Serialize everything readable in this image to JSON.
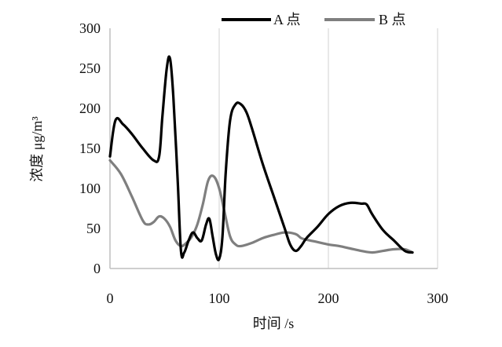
{
  "chart_data": {
    "type": "line",
    "xlabel": "时间 /s",
    "ylabel": "浓度 μg/m³",
    "xlim": [
      0,
      300
    ],
    "ylim": [
      0,
      300
    ],
    "xticks": [
      "0",
      "100",
      "200",
      "300"
    ],
    "yticks": [
      "0",
      "50",
      "100",
      "150",
      "200",
      "250",
      "300"
    ],
    "grid": "vertical",
    "legend_position": "top-right",
    "series": [
      {
        "name": "A 点",
        "color": "#000000",
        "x": [
          0,
          5,
          12,
          20,
          30,
          40,
          45,
          48,
          52,
          55,
          58,
          62,
          65,
          68,
          72,
          76,
          80,
          84,
          88,
          91,
          94,
          97,
          100,
          103,
          106,
          110,
          115,
          120,
          125,
          130,
          140,
          150,
          160,
          165,
          170,
          175,
          180,
          190,
          200,
          210,
          220,
          230,
          235,
          240,
          250,
          260,
          270,
          277
        ],
        "y": [
          140,
          185,
          180,
          168,
          150,
          135,
          140,
          190,
          250,
          262,
          215,
          110,
          22,
          20,
          35,
          45,
          38,
          35,
          55,
          62,
          40,
          18,
          12,
          40,
          120,
          185,
          205,
          205,
          195,
          175,
          130,
          90,
          50,
          30,
          22,
          28,
          38,
          52,
          68,
          78,
          82,
          81,
          80,
          68,
          48,
          35,
          22,
          20
        ]
      },
      {
        "name": "B 点",
        "color": "#7f7f7f",
        "x": [
          0,
          10,
          20,
          30,
          35,
          40,
          45,
          50,
          55,
          60,
          65,
          70,
          75,
          80,
          85,
          90,
          95,
          100,
          105,
          110,
          115,
          120,
          130,
          140,
          150,
          160,
          170,
          175,
          180,
          190,
          200,
          210,
          220,
          230,
          240,
          250,
          260,
          270,
          277
        ],
        "y": [
          135,
          118,
          90,
          60,
          55,
          58,
          65,
          62,
          52,
          35,
          28,
          32,
          40,
          55,
          80,
          110,
          115,
          100,
          70,
          40,
          30,
          28,
          32,
          38,
          42,
          45,
          43,
          38,
          36,
          33,
          30,
          28,
          25,
          22,
          20,
          22,
          24,
          24,
          20
        ]
      }
    ]
  }
}
